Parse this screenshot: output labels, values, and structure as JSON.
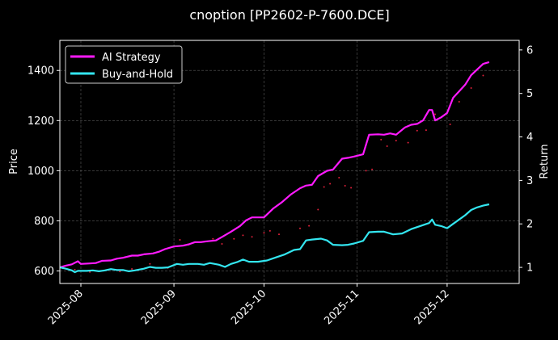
{
  "chart_data": {
    "type": "line",
    "title": "cnoption [PP2602-P-7600.DCE]",
    "ylabel_left": "Price",
    "ylabel_right": "Return",
    "x_start": "2025-07-25",
    "x_end": "2025-12-25",
    "x_ticks": [
      "2025-08-01",
      "2025-09-01",
      "2025-10-01",
      "2025-11-01",
      "2025-12-01"
    ],
    "x_tick_labels": [
      "2025-08",
      "2025-09",
      "2025-10",
      "2025-11",
      "2025-12"
    ],
    "left_axis": {
      "range": [
        550,
        1520
      ],
      "ticks": [
        600,
        800,
        1000,
        1200,
        1400
      ]
    },
    "right_axis": {
      "range": [
        0.63,
        6.22
      ],
      "ticks": [
        1,
        2,
        3,
        4,
        5,
        6
      ]
    },
    "grid": true,
    "legend_position": "top-left",
    "series": [
      {
        "name": "AI Strategy",
        "axis": "right",
        "color": "#ff1aff",
        "points": [
          [
            "2025-07-25",
            1.0
          ],
          [
            "2025-07-27",
            1.04
          ],
          [
            "2025-07-29",
            1.07
          ],
          [
            "2025-07-31",
            1.14
          ],
          [
            "2025-08-01",
            1.08
          ],
          [
            "2025-08-04",
            1.09
          ],
          [
            "2025-08-06",
            1.1
          ],
          [
            "2025-08-08",
            1.15
          ],
          [
            "2025-08-11",
            1.16
          ],
          [
            "2025-08-13",
            1.2
          ],
          [
            "2025-08-15",
            1.22
          ],
          [
            "2025-08-18",
            1.27
          ],
          [
            "2025-08-20",
            1.27
          ],
          [
            "2025-08-22",
            1.3
          ],
          [
            "2025-08-25",
            1.32
          ],
          [
            "2025-08-27",
            1.36
          ],
          [
            "2025-08-29",
            1.42
          ],
          [
            "2025-09-01",
            1.48
          ],
          [
            "2025-09-04",
            1.5
          ],
          [
            "2025-09-06",
            1.53
          ],
          [
            "2025-09-08",
            1.58
          ],
          [
            "2025-09-10",
            1.58
          ],
          [
            "2025-09-12",
            1.6
          ],
          [
            "2025-09-15",
            1.62
          ],
          [
            "2025-09-17",
            1.7
          ],
          [
            "2025-09-20",
            1.82
          ],
          [
            "2025-09-23",
            1.95
          ],
          [
            "2025-09-25",
            2.08
          ],
          [
            "2025-09-27",
            2.15
          ],
          [
            "2025-09-29",
            2.15
          ],
          [
            "2025-10-01",
            2.15
          ],
          [
            "2025-10-04",
            2.35
          ],
          [
            "2025-10-07",
            2.5
          ],
          [
            "2025-10-10",
            2.68
          ],
          [
            "2025-10-13",
            2.82
          ],
          [
            "2025-10-15",
            2.88
          ],
          [
            "2025-10-17",
            2.9
          ],
          [
            "2025-10-19",
            3.1
          ],
          [
            "2025-10-22",
            3.22
          ],
          [
            "2025-10-24",
            3.25
          ],
          [
            "2025-10-27",
            3.5
          ],
          [
            "2025-10-29",
            3.52
          ],
          [
            "2025-10-31",
            3.55
          ],
          [
            "2025-11-03",
            3.6
          ],
          [
            "2025-11-05",
            4.05
          ],
          [
            "2025-11-08",
            4.06
          ],
          [
            "2025-11-10",
            4.05
          ],
          [
            "2025-11-12",
            4.08
          ],
          [
            "2025-11-14",
            4.05
          ],
          [
            "2025-11-17",
            4.22
          ],
          [
            "2025-11-19",
            4.28
          ],
          [
            "2025-11-21",
            4.3
          ],
          [
            "2025-11-23",
            4.38
          ],
          [
            "2025-11-25",
            4.62
          ],
          [
            "2025-11-26",
            4.62
          ],
          [
            "2025-11-27",
            4.38
          ],
          [
            "2025-11-29",
            4.45
          ],
          [
            "2025-12-01",
            4.55
          ],
          [
            "2025-12-03",
            4.9
          ],
          [
            "2025-12-05",
            5.05
          ],
          [
            "2025-12-07",
            5.2
          ],
          [
            "2025-12-09",
            5.42
          ],
          [
            "2025-12-11",
            5.55
          ],
          [
            "2025-12-13",
            5.68
          ],
          [
            "2025-12-15",
            5.72
          ]
        ]
      },
      {
        "name": "Buy-and-Hold",
        "axis": "right",
        "color": "#33e6f0",
        "points": [
          [
            "2025-07-25",
            1.0
          ],
          [
            "2025-07-27",
            0.97
          ],
          [
            "2025-07-29",
            0.93
          ],
          [
            "2025-07-30",
            0.89
          ],
          [
            "2025-07-31",
            0.92
          ],
          [
            "2025-08-03",
            0.92
          ],
          [
            "2025-08-05",
            0.93
          ],
          [
            "2025-08-07",
            0.91
          ],
          [
            "2025-08-09",
            0.93
          ],
          [
            "2025-08-11",
            0.96
          ],
          [
            "2025-08-13",
            0.94
          ],
          [
            "2025-08-15",
            0.94
          ],
          [
            "2025-08-17",
            0.91
          ],
          [
            "2025-08-19",
            0.93
          ],
          [
            "2025-08-22",
            0.97
          ],
          [
            "2025-08-24",
            1.01
          ],
          [
            "2025-08-26",
            0.99
          ],
          [
            "2025-08-28",
            0.99
          ],
          [
            "2025-08-30",
            1.0
          ],
          [
            "2025-09-02",
            1.08
          ],
          [
            "2025-09-04",
            1.06
          ],
          [
            "2025-09-06",
            1.08
          ],
          [
            "2025-09-09",
            1.08
          ],
          [
            "2025-09-11",
            1.06
          ],
          [
            "2025-09-13",
            1.1
          ],
          [
            "2025-09-16",
            1.06
          ],
          [
            "2025-09-18",
            1.01
          ],
          [
            "2025-09-20",
            1.08
          ],
          [
            "2025-09-22",
            1.12
          ],
          [
            "2025-09-24",
            1.18
          ],
          [
            "2025-09-26",
            1.13
          ],
          [
            "2025-09-29",
            1.13
          ],
          [
            "2025-10-02",
            1.16
          ],
          [
            "2025-10-05",
            1.23
          ],
          [
            "2025-10-08",
            1.3
          ],
          [
            "2025-10-11",
            1.4
          ],
          [
            "2025-10-13",
            1.42
          ],
          [
            "2025-10-15",
            1.62
          ],
          [
            "2025-10-17",
            1.64
          ],
          [
            "2025-10-20",
            1.66
          ],
          [
            "2025-10-22",
            1.62
          ],
          [
            "2025-10-24",
            1.52
          ],
          [
            "2025-10-27",
            1.51
          ],
          [
            "2025-10-29",
            1.52
          ],
          [
            "2025-10-31",
            1.55
          ],
          [
            "2025-11-03",
            1.61
          ],
          [
            "2025-11-05",
            1.81
          ],
          [
            "2025-11-08",
            1.82
          ],
          [
            "2025-11-10",
            1.82
          ],
          [
            "2025-11-13",
            1.76
          ],
          [
            "2025-11-16",
            1.78
          ],
          [
            "2025-11-19",
            1.88
          ],
          [
            "2025-11-22",
            1.95
          ],
          [
            "2025-11-25",
            2.02
          ],
          [
            "2025-11-26",
            2.1
          ],
          [
            "2025-11-27",
            1.98
          ],
          [
            "2025-11-29",
            1.95
          ],
          [
            "2025-12-01",
            1.9
          ],
          [
            "2025-12-03",
            2.0
          ],
          [
            "2025-12-05",
            2.1
          ],
          [
            "2025-12-07",
            2.2
          ],
          [
            "2025-12-09",
            2.32
          ],
          [
            "2025-12-11",
            2.38
          ],
          [
            "2025-12-13",
            2.42
          ],
          [
            "2025-12-15",
            2.45
          ]
        ]
      },
      {
        "name": "Price",
        "axis": "left",
        "type": "scatter",
        "color": "#e0203a",
        "points": [
          [
            "2025-07-26",
            612
          ],
          [
            "2025-07-30",
            605
          ],
          [
            "2025-08-04",
            596
          ],
          [
            "2025-08-09",
            602
          ],
          [
            "2025-08-14",
            598
          ],
          [
            "2025-08-18",
            608
          ],
          [
            "2025-08-24",
            628
          ],
          [
            "2025-08-30",
            612
          ],
          [
            "2025-09-03",
            724
          ],
          [
            "2025-09-06",
            705
          ],
          [
            "2025-09-10",
            715
          ],
          [
            "2025-09-14",
            728
          ],
          [
            "2025-09-17",
            708
          ],
          [
            "2025-09-21",
            728
          ],
          [
            "2025-09-24",
            742
          ],
          [
            "2025-09-27",
            736
          ],
          [
            "2025-10-01",
            752
          ],
          [
            "2025-10-03",
            760
          ],
          [
            "2025-10-06",
            746
          ],
          [
            "2025-10-13",
            770
          ],
          [
            "2025-10-16",
            780
          ],
          [
            "2025-10-19",
            845
          ],
          [
            "2025-10-21",
            935
          ],
          [
            "2025-10-23",
            948
          ],
          [
            "2025-10-26",
            972
          ],
          [
            "2025-10-28",
            940
          ],
          [
            "2025-10-30",
            932
          ],
          [
            "2025-11-04",
            1000
          ],
          [
            "2025-11-06",
            1005
          ],
          [
            "2025-11-09",
            1124
          ],
          [
            "2025-11-11",
            1098
          ],
          [
            "2025-11-14",
            1120
          ],
          [
            "2025-11-18",
            1112
          ],
          [
            "2025-11-21",
            1160
          ],
          [
            "2025-11-24",
            1162
          ],
          [
            "2025-11-27",
            1225
          ],
          [
            "2025-12-02",
            1185
          ],
          [
            "2025-12-05",
            1275
          ],
          [
            "2025-12-09",
            1330
          ],
          [
            "2025-12-13",
            1380
          ]
        ]
      }
    ]
  }
}
